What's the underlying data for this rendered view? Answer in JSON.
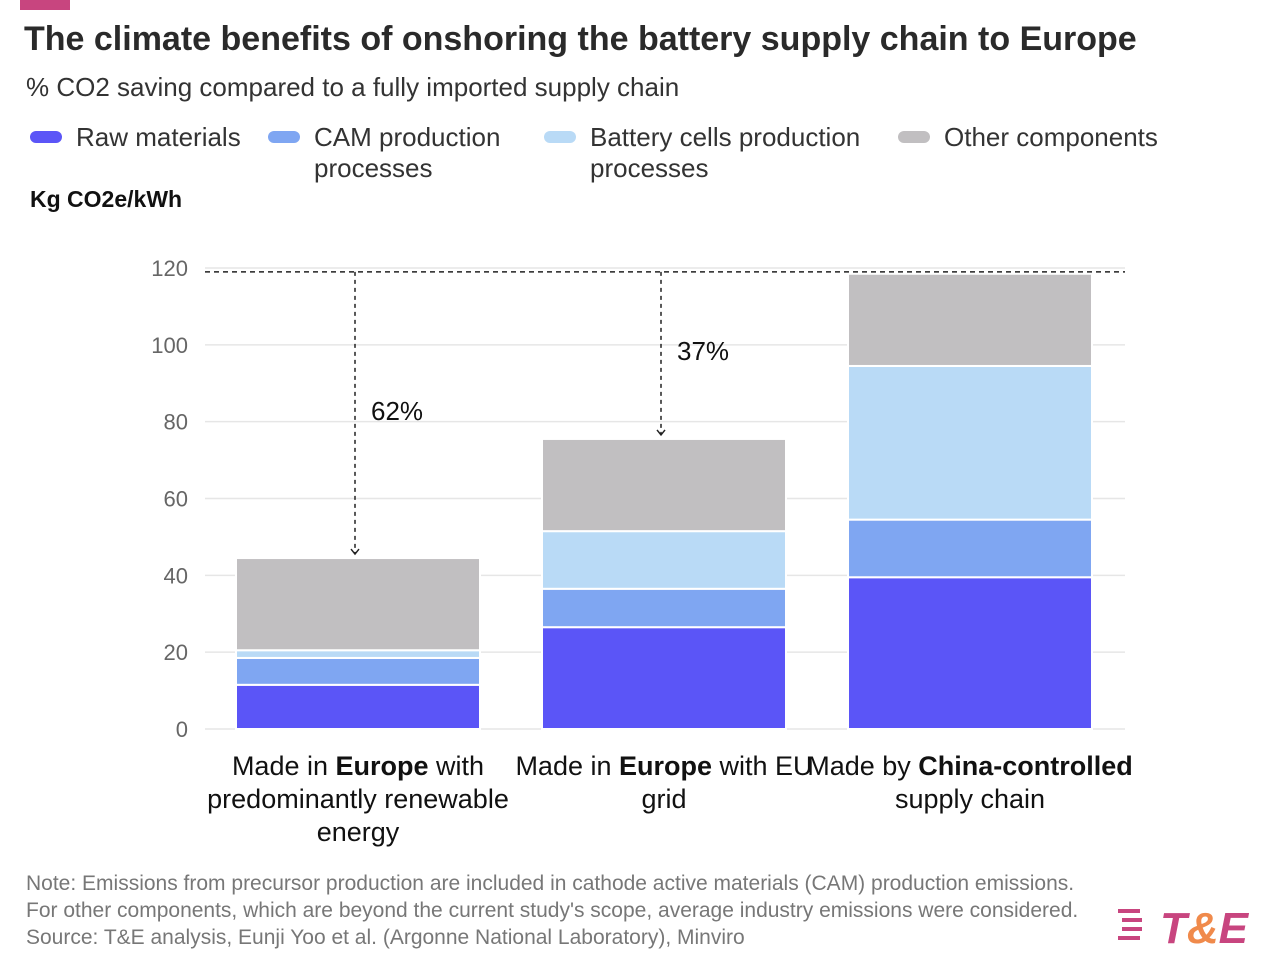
{
  "chart_data": {
    "type": "bar",
    "stacked": true,
    "title": "The climate benefits of onshoring the battery supply chain to Europe",
    "subtitle": "% CO2 saving compared to a fully imported supply chain",
    "ylabel": "Kg CO2e/kWh",
    "ylim": [
      0,
      120
    ],
    "yticks": [
      0,
      20,
      40,
      60,
      80,
      100,
      120
    ],
    "grid": true,
    "legend": "top",
    "categories": [
      [
        {
          "t": "Made in ",
          "b": false
        },
        {
          "t": "Europe",
          "b": true
        },
        {
          "t": " with predominantly renewable energy",
          "b": false
        }
      ],
      [
        {
          "t": "Made in ",
          "b": false
        },
        {
          "t": "Europe",
          "b": true
        },
        {
          "t": " with EU grid",
          "b": false
        }
      ],
      [
        {
          "t": "Made by ",
          "b": false
        },
        {
          "t": "China-controlled",
          "b": true
        },
        {
          "t": " supply chain",
          "b": false
        }
      ]
    ],
    "series": [
      {
        "name": "Raw materials",
        "color": "#5b55f7",
        "values": [
          11.5,
          26.5,
          39.5
        ]
      },
      {
        "name": "CAM production processes",
        "color": "#7fa6f2",
        "values": [
          7,
          10,
          15
        ]
      },
      {
        "name": "Battery cells production processes",
        "color": "#b9daf6",
        "values": [
          2,
          15,
          40
        ]
      },
      {
        "name": "Other components",
        "color": "#c1bfc1",
        "values": [
          24,
          24,
          24
        ]
      }
    ],
    "annotations": [
      {
        "text": "62%",
        "bar": 0
      },
      {
        "text": "37%",
        "bar": 1
      }
    ],
    "reference_value": 119
  },
  "note": "Note: Emissions from precursor production are included in cathode active materials (CAM) production emissions. For other components, which are beyond the current study's scope, average industry emissions were considered. Source: T&E analysis, Eunji Yoo et al. (Argonne National Laboratory), Minviro",
  "logo": "T&E"
}
